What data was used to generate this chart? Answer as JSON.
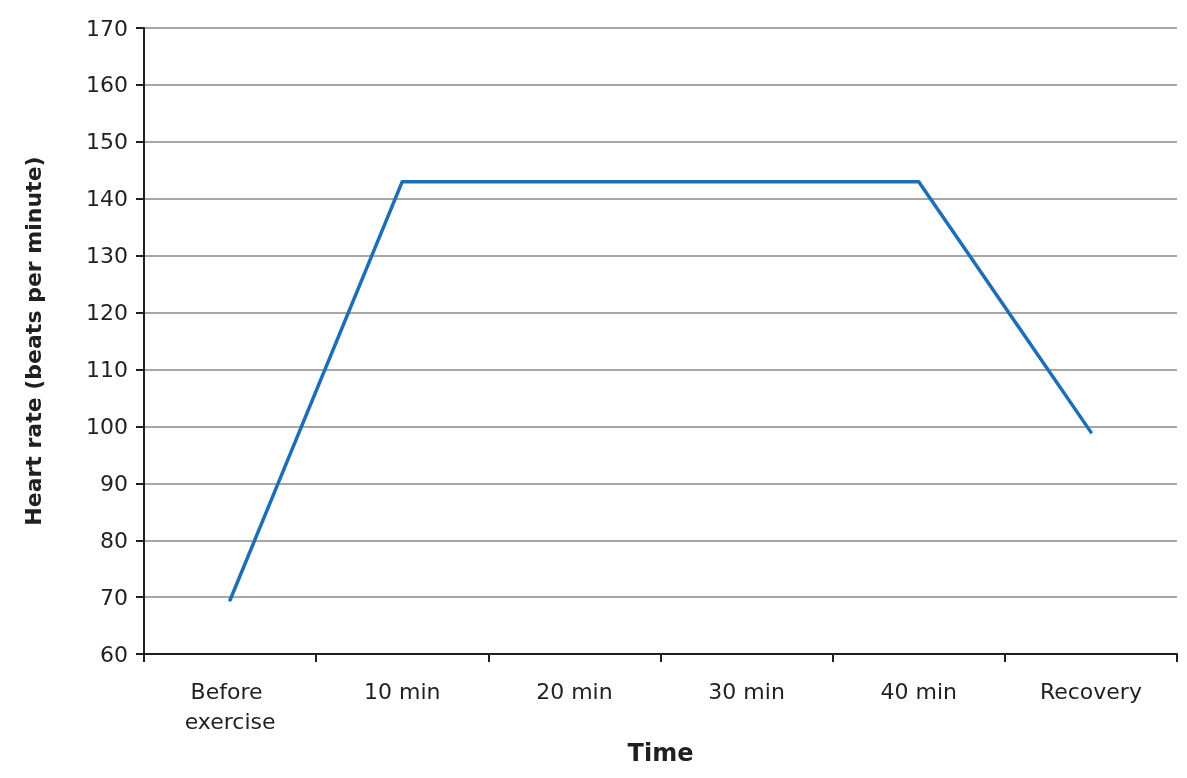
{
  "chart_data": {
    "type": "line",
    "xlabel": "Time",
    "ylabel": "Heart rate (beats per minute)",
    "categories": [
      "Before exercise",
      "10 min",
      "20 min",
      "30 min",
      "40 min",
      "Recovery"
    ],
    "series": [
      {
        "color": "#1c6fb7",
        "values": [
          69.5,
          143,
          143,
          143,
          143,
          99
        ]
      }
    ],
    "ylim": [
      60,
      170
    ],
    "yticks": [
      60,
      70,
      80,
      90,
      100,
      110,
      120,
      130,
      140,
      150,
      160,
      170
    ],
    "grid": "y",
    "marker": "none",
    "line_style": "solid"
  }
}
